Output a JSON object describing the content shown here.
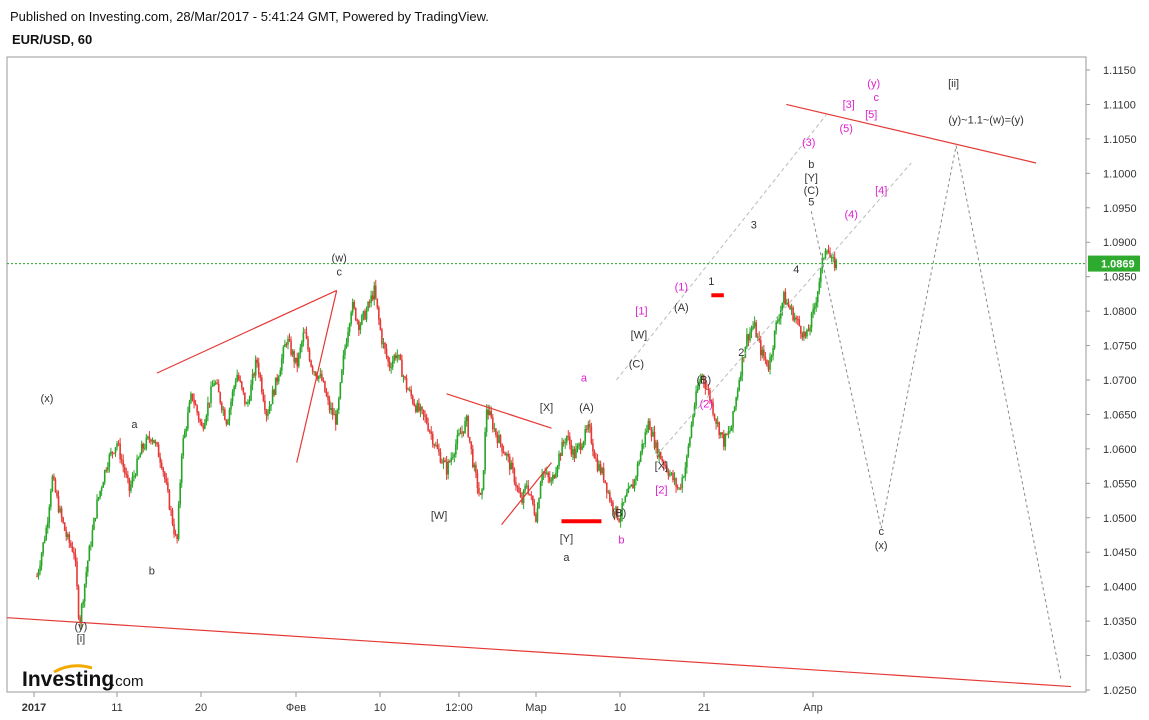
{
  "header": {
    "published": "Published on Investing.com, 28/Mar/2017 - 5:41:24 GMT, Powered by TradingView.",
    "symbol": "EUR/USD, 60"
  },
  "branding": {
    "logo_main": "Investing",
    "logo_suffix": ".com"
  },
  "chart_data": {
    "type": "candlestick",
    "symbol": "EUR/USD",
    "interval": "60",
    "y_axis": {
      "min": 1.025,
      "max": 1.115,
      "ticks": [
        "1.1150",
        "1.1100",
        "1.1050",
        "1.1000",
        "1.0950",
        "1.0900",
        "1.0850",
        "1.0800",
        "1.0750",
        "1.0700",
        "1.0650",
        "1.0600",
        "1.0550",
        "1.0500",
        "1.0450",
        "1.0400",
        "1.0350",
        "1.0300",
        "1.0250"
      ]
    },
    "x_axis": {
      "ticks": [
        {
          "label": "2017",
          "bold": true
        },
        {
          "label": "11"
        },
        {
          "label": "20"
        },
        {
          "label": "Фев"
        },
        {
          "label": "10"
        },
        {
          "label": "12:00"
        },
        {
          "label": "Мар"
        },
        {
          "label": "10"
        },
        {
          "label": "21"
        },
        {
          "label": "Апр"
        }
      ]
    },
    "current_price": {
      "value": 1.0869,
      "label": "1.0869"
    },
    "price_path": [
      [
        0,
        1.0415
      ],
      [
        0.02,
        1.049
      ],
      [
        0.03,
        1.056
      ],
      [
        0.045,
        1.051
      ],
      [
        0.06,
        1.047
      ],
      [
        0.075,
        1.045
      ],
      [
        0.085,
        1.0345
      ],
      [
        0.1,
        1.043
      ],
      [
        0.12,
        1.052
      ],
      [
        0.14,
        1.058
      ],
      [
        0.16,
        1.061
      ],
      [
        0.185,
        1.054
      ],
      [
        0.21,
        1.06
      ],
      [
        0.23,
        1.062
      ],
      [
        0.25,
        1.058
      ],
      [
        0.27,
        1.05
      ],
      [
        0.28,
        1.046
      ],
      [
        0.29,
        1.06
      ],
      [
        0.31,
        1.068
      ],
      [
        0.33,
        1.063
      ],
      [
        0.355,
        1.07
      ],
      [
        0.38,
        1.064
      ],
      [
        0.4,
        1.071
      ],
      [
        0.42,
        1.066
      ],
      [
        0.44,
        1.073
      ],
      [
        0.46,
        1.065
      ],
      [
        0.48,
        1.07
      ],
      [
        0.5,
        1.076
      ],
      [
        0.52,
        1.072
      ],
      [
        0.535,
        1.077
      ],
      [
        0.55,
        1.072
      ],
      [
        0.57,
        1.07
      ],
      [
        0.585,
        1.066
      ],
      [
        0.6,
        1.064
      ],
      [
        0.615,
        1.074
      ],
      [
        0.63,
        1.081
      ],
      [
        0.645,
        1.078
      ],
      [
        0.66,
        1.08
      ],
      [
        0.675,
        1.083
      ],
      [
        0.69,
        1.076
      ],
      [
        0.705,
        1.072
      ],
      [
        0.72,
        1.074
      ],
      [
        0.74,
        1.069
      ],
      [
        0.76,
        1.066
      ],
      [
        0.78,
        1.064
      ],
      [
        0.8,
        1.06
      ],
      [
        0.82,
        1.057
      ],
      [
        0.84,
        1.061
      ],
      [
        0.86,
        1.064
      ],
      [
        0.875,
        1.057
      ],
      [
        0.89,
        1.052
      ],
      [
        0.9,
        1.066
      ],
      [
        0.92,
        1.062
      ],
      [
        0.94,
        1.059
      ],
      [
        0.955,
        1.056
      ],
      [
        0.97,
        1.052
      ],
      [
        0.98,
        1.055
      ],
      [
        1.0,
        1.05
      ],
      [
        1.01,
        1.057
      ],
      [
        1.03,
        1.055
      ],
      [
        1.045,
        1.059
      ],
      [
        1.06,
        1.062
      ],
      [
        1.075,
        1.059
      ],
      [
        1.09,
        1.061
      ],
      [
        1.105,
        1.063
      ],
      [
        1.12,
        1.058
      ],
      [
        1.135,
        1.056
      ],
      [
        1.15,
        1.052
      ],
      [
        1.165,
        1.05
      ],
      [
        1.18,
        1.053
      ],
      [
        1.195,
        1.055
      ],
      [
        1.21,
        1.06
      ],
      [
        1.225,
        1.064
      ],
      [
        1.24,
        1.06
      ],
      [
        1.255,
        1.058
      ],
      [
        1.27,
        1.056
      ],
      [
        1.285,
        1.054
      ],
      [
        1.3,
        1.058
      ],
      [
        1.315,
        1.066
      ],
      [
        1.33,
        1.071
      ],
      [
        1.345,
        1.068
      ],
      [
        1.36,
        1.064
      ],
      [
        1.375,
        1.061
      ],
      [
        1.39,
        1.063
      ],
      [
        1.405,
        1.07
      ],
      [
        1.42,
        1.076
      ],
      [
        1.435,
        1.078
      ],
      [
        1.45,
        1.074
      ],
      [
        1.465,
        1.072
      ],
      [
        1.48,
        1.078
      ],
      [
        1.495,
        1.082
      ],
      [
        1.51,
        1.08
      ],
      [
        1.525,
        1.078
      ],
      [
        1.54,
        1.076
      ],
      [
        1.555,
        1.08
      ],
      [
        1.57,
        1.086
      ],
      [
        1.58,
        1.09
      ],
      [
        1.59,
        1.087
      ],
      [
        1.6,
        1.0869
      ]
    ],
    "trend_lines": [
      {
        "from": [
          -0.06,
          1.0355
        ],
        "to": [
          2.07,
          1.0255
        ],
        "color": "#e53935"
      },
      {
        "from": [
          0.24,
          1.071
        ],
        "to": [
          0.6,
          1.083
        ],
        "color": "#e53935"
      },
      {
        "from": [
          0.52,
          1.058
        ],
        "to": [
          0.6,
          1.083
        ],
        "color": "#e53935"
      },
      {
        "from": [
          0.82,
          1.068
        ],
        "to": [
          1.03,
          1.063
        ],
        "color": "#e53935"
      },
      {
        "from": [
          0.93,
          1.049
        ],
        "to": [
          1.03,
          1.058
        ],
        "color": "#e53935"
      },
      {
        "from": [
          1.5,
          1.11
        ],
        "to": [
          2.0,
          1.1015
        ],
        "color": "#e53935"
      }
    ],
    "zones": [
      {
        "from": 1.05,
        "to": 1.13,
        "y": 1.0495,
        "color": "#ff0000"
      },
      {
        "from": 1.35,
        "to": 1.375,
        "y": 1.0823,
        "color": "#ff0000"
      }
    ],
    "channel_lines": [
      {
        "from": [
          1.16,
          1.07
        ],
        "to": [
          1.58,
          1.1085
        ],
        "color": "#bbbbbb"
      },
      {
        "from": [
          1.24,
          1.059
        ],
        "to": [
          1.75,
          1.1015
        ],
        "color": "#bbbbbb"
      }
    ],
    "projection": [
      [
        1.55,
        1.0945
      ],
      [
        1.69,
        1.0485
      ],
      [
        1.84,
        1.104
      ],
      [
        2.05,
        1.0265
      ]
    ],
    "annotations": [
      {
        "text": "(x)",
        "x": 0.02,
        "y": 1.0668,
        "color": "#333"
      },
      {
        "text": "(y)",
        "x": 0.088,
        "y": 1.0337,
        "color": "#333"
      },
      {
        "text": "[i]",
        "x": 0.088,
        "y": 1.032,
        "color": "#333"
      },
      {
        "text": "a",
        "x": 0.195,
        "y": 1.063,
        "color": "#333"
      },
      {
        "text": "b",
        "x": 0.23,
        "y": 1.0418,
        "color": "#333"
      },
      {
        "text": "(w)",
        "x": 0.605,
        "y": 1.0872,
        "color": "#333"
      },
      {
        "text": "c",
        "x": 0.605,
        "y": 1.0852,
        "color": "#333"
      },
      {
        "text": "[W]",
        "x": 0.805,
        "y": 1.0498,
        "color": "#333"
      },
      {
        "text": "[X]",
        "x": 1.02,
        "y": 1.0655,
        "color": "#333"
      },
      {
        "text": "[Y]",
        "x": 1.06,
        "y": 1.0465,
        "color": "#333"
      },
      {
        "text": "a",
        "x": 1.06,
        "y": 1.0437,
        "color": "#333"
      },
      {
        "text": "a",
        "x": 1.095,
        "y": 1.0698,
        "color": "#e020d0"
      },
      {
        "text": "(A)",
        "x": 1.1,
        "y": 1.0655,
        "color": "#333"
      },
      {
        "text": "(B)",
        "x": 1.165,
        "y": 1.0502,
        "color": "#333"
      },
      {
        "text": "b",
        "x": 1.17,
        "y": 1.0463,
        "color": "#e020d0"
      },
      {
        "text": "[X]",
        "x": 1.25,
        "y": 1.057,
        "color": "#333"
      },
      {
        "text": "[2]",
        "x": 1.25,
        "y": 1.0535,
        "color": "#e020d0"
      },
      {
        "text": "(C)",
        "x": 1.2,
        "y": 1.0718,
        "color": "#333"
      },
      {
        "text": "[W]",
        "x": 1.205,
        "y": 1.076,
        "color": "#333"
      },
      {
        "text": "[1]",
        "x": 1.21,
        "y": 1.0795,
        "color": "#e020d0"
      },
      {
        "text": "(2)",
        "x": 1.34,
        "y": 1.066,
        "color": "#e020d0"
      },
      {
        "text": "(B)",
        "x": 1.335,
        "y": 1.0695,
        "color": "#333"
      },
      {
        "text": "(A)",
        "x": 1.29,
        "y": 1.08,
        "color": "#333"
      },
      {
        "text": "(1)",
        "x": 1.29,
        "y": 1.083,
        "color": "#e020d0"
      },
      {
        "text": "1",
        "x": 1.35,
        "y": 1.0838,
        "color": "#333"
      },
      {
        "text": "2",
        "x": 1.41,
        "y": 1.0735,
        "color": "#333"
      },
      {
        "text": "3",
        "x": 1.435,
        "y": 1.092,
        "color": "#333"
      },
      {
        "text": "4",
        "x": 1.52,
        "y": 1.0855,
        "color": "#333"
      },
      {
        "text": "(3)",
        "x": 1.545,
        "y": 1.104,
        "color": "#e020d0"
      },
      {
        "text": "b",
        "x": 1.55,
        "y": 1.1008,
        "color": "#333"
      },
      {
        "text": "[Y]",
        "x": 1.55,
        "y": 1.0988,
        "color": "#333"
      },
      {
        "text": "(C)",
        "x": 1.55,
        "y": 1.097,
        "color": "#333"
      },
      {
        "text": "5",
        "x": 1.55,
        "y": 1.0953,
        "color": "#333"
      },
      {
        "text": "(4)",
        "x": 1.63,
        "y": 1.0935,
        "color": "#e020d0"
      },
      {
        "text": "[4]",
        "x": 1.69,
        "y": 1.097,
        "color": "#e020d0"
      },
      {
        "text": "(5)",
        "x": 1.62,
        "y": 1.106,
        "color": "#e020d0"
      },
      {
        "text": "[3]",
        "x": 1.625,
        "y": 1.1095,
        "color": "#e020d0"
      },
      {
        "text": "[5]",
        "x": 1.67,
        "y": 1.108,
        "color": "#e020d0"
      },
      {
        "text": "(y)",
        "x": 1.675,
        "y": 1.1125,
        "color": "#e020d0"
      },
      {
        "text": "c",
        "x": 1.68,
        "y": 1.1105,
        "color": "#e020d0"
      },
      {
        "text": "[ii]",
        "x": 1.835,
        "y": 1.1125,
        "color": "#333"
      },
      {
        "text": "(y)~1.1~(w)=(y)",
        "x": 1.9,
        "y": 1.1072,
        "color": "#333"
      },
      {
        "text": "c",
        "x": 1.69,
        "y": 1.0475,
        "color": "#333"
      },
      {
        "text": "(x)",
        "x": 1.69,
        "y": 1.0455,
        "color": "#333"
      }
    ],
    "grid": false,
    "colors": {
      "up": "#26a626",
      "down": "#e53935",
      "trend": "#e53935",
      "price_line": "#22aa22",
      "price_box": "#2eaa2e"
    }
  }
}
